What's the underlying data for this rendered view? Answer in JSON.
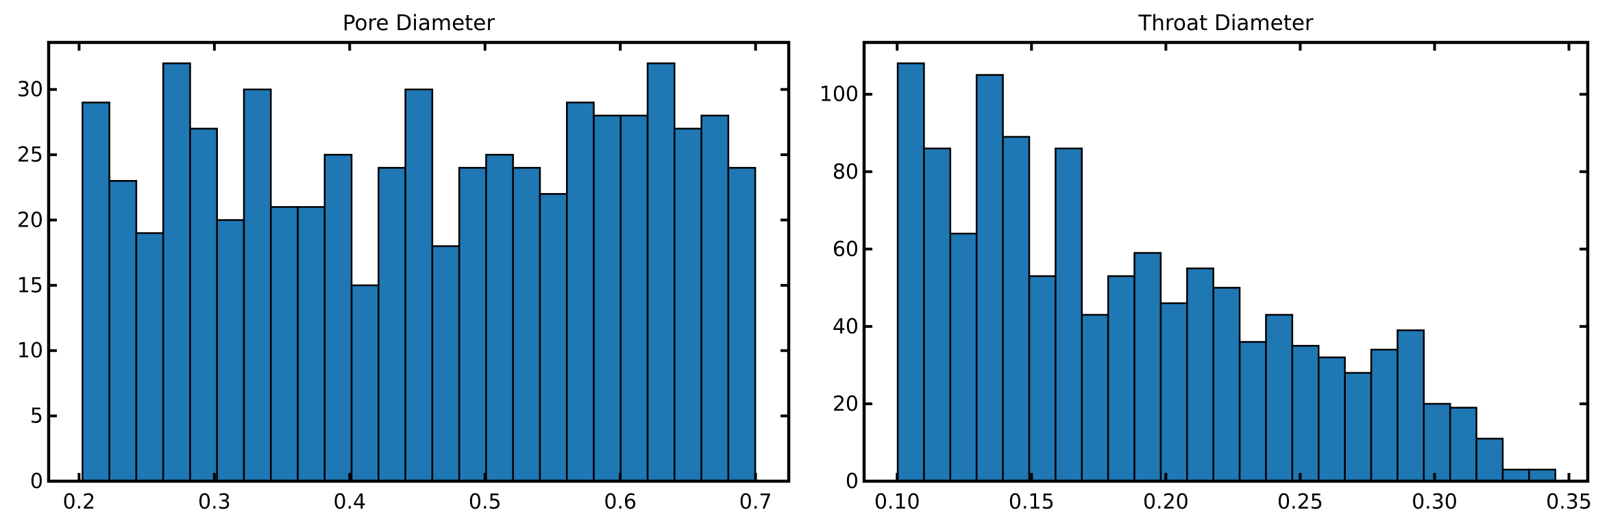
{
  "chart_data": [
    {
      "type": "bar",
      "title": "Pore Diameter",
      "xlabel": "",
      "ylabel": "",
      "bar_color": "#1f77b4",
      "edge_color": "#000000",
      "xlim": [
        0.1775,
        0.7245
      ],
      "ylim": [
        0,
        33.6
      ],
      "xticks": [
        0.2,
        0.3,
        0.4,
        0.5,
        0.6,
        0.7
      ],
      "xtick_labels": [
        "0.2",
        "0.3",
        "0.4",
        "0.5",
        "0.6",
        "0.7"
      ],
      "yticks": [
        0,
        5,
        10,
        15,
        20,
        25,
        30
      ],
      "ytick_labels": [
        "0",
        "5",
        "10",
        "15",
        "20",
        "25",
        "30"
      ],
      "bin_start": 0.2025,
      "bin_width": 0.01989,
      "values": [
        29,
        23,
        19,
        32,
        27,
        20,
        30,
        21,
        21,
        25,
        15,
        24,
        30,
        18,
        24,
        25,
        24,
        22,
        29,
        28,
        28,
        32,
        27,
        28,
        24
      ]
    },
    {
      "type": "bar",
      "title": "Throat Diameter",
      "xlabel": "",
      "ylabel": "",
      "bar_color": "#1f77b4",
      "edge_color": "#000000",
      "xlim": [
        0.0877,
        0.357
      ],
      "ylim": [
        0,
        113.4
      ],
      "xticks": [
        0.1,
        0.15,
        0.2,
        0.25,
        0.3,
        0.35
      ],
      "xtick_labels": [
        "0.10",
        "0.15",
        "0.20",
        "0.25",
        "0.30",
        "0.35"
      ],
      "yticks": [
        0,
        20,
        40,
        60,
        80,
        100
      ],
      "ytick_labels": [
        "0",
        "20",
        "40",
        "60",
        "80",
        "100"
      ],
      "bin_start": 0.1002,
      "bin_width": 0.00979,
      "values": [
        108,
        86,
        64,
        105,
        89,
        53,
        86,
        43,
        53,
        59,
        46,
        55,
        50,
        36,
        43,
        35,
        32,
        28,
        34,
        39,
        20,
        19,
        11,
        3,
        3
      ]
    }
  ]
}
